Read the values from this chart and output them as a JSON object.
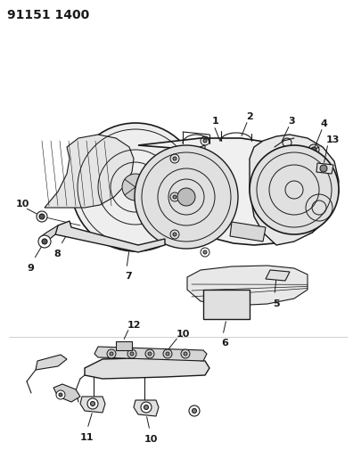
{
  "title_code": "91151 1400",
  "background_color": "#ffffff",
  "line_color": "#1a1a1a",
  "title_fontsize": 10,
  "label_fontsize": 8,
  "figsize": [
    3.96,
    5.33
  ],
  "dpi": 100
}
